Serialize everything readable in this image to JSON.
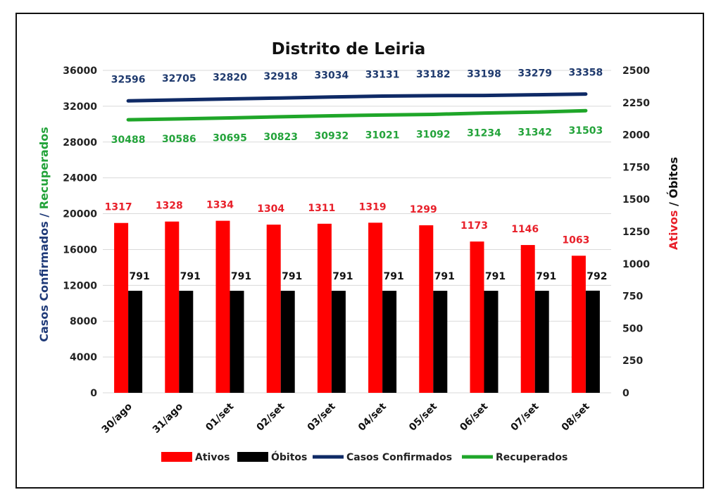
{
  "chart_data": {
    "type": "bar",
    "title": "Distrito de Leiria",
    "categories": [
      "30/ago",
      "31/ago",
      "01/set",
      "02/set",
      "03/set",
      "04/set",
      "05/set",
      "06/set",
      "07/set",
      "08/set"
    ],
    "ylabel_left": [
      "Casos Confirmados",
      " / ",
      "Recuperados"
    ],
    "ylabel_right": [
      "Ativos",
      " / ",
      "Óbitos"
    ],
    "ylim_left": [
      0,
      36000
    ],
    "yticks_left": [
      "0",
      "4000",
      "8000",
      "12000",
      "16000",
      "20000",
      "24000",
      "28000",
      "32000",
      "36000"
    ],
    "ylim_right": [
      0,
      2500
    ],
    "yticks_right": [
      "0",
      "250",
      "500",
      "750",
      "1000",
      "1250",
      "1500",
      "1750",
      "2000",
      "2250",
      "2500"
    ],
    "grid": true,
    "legend_position": "bottom",
    "series": [
      {
        "name": "Ativos",
        "type": "bar",
        "axis": "right",
        "color": "#ff0000",
        "label_color": "#e8202a",
        "values": [
          1317,
          1328,
          1334,
          1304,
          1311,
          1319,
          1299,
          1173,
          1146,
          1063
        ]
      },
      {
        "name": "Óbitos",
        "type": "bar",
        "axis": "right",
        "color": "#000000",
        "label_color": "#111111",
        "values": [
          791,
          791,
          791,
          791,
          791,
          791,
          791,
          791,
          791,
          792
        ]
      },
      {
        "name": "Casos Confirmados",
        "type": "line",
        "axis": "left",
        "color": "#0f2a66",
        "label_color": "#1f3a6e",
        "values": [
          32596,
          32705,
          32820,
          32918,
          33034,
          33131,
          33182,
          33198,
          33279,
          33358
        ]
      },
      {
        "name": "Recuperados",
        "type": "line",
        "axis": "left",
        "color": "#1fa629",
        "label_color": "#23a33a",
        "values": [
          30488,
          30586,
          30695,
          30823,
          30932,
          31021,
          31092,
          31234,
          31342,
          31503
        ]
      }
    ],
    "axis_label_colors": {
      "confirmados": "#1f3a78",
      "recuperados": "#23a33a",
      "ativos": "#e8202a",
      "obitos": "#111111"
    }
  }
}
